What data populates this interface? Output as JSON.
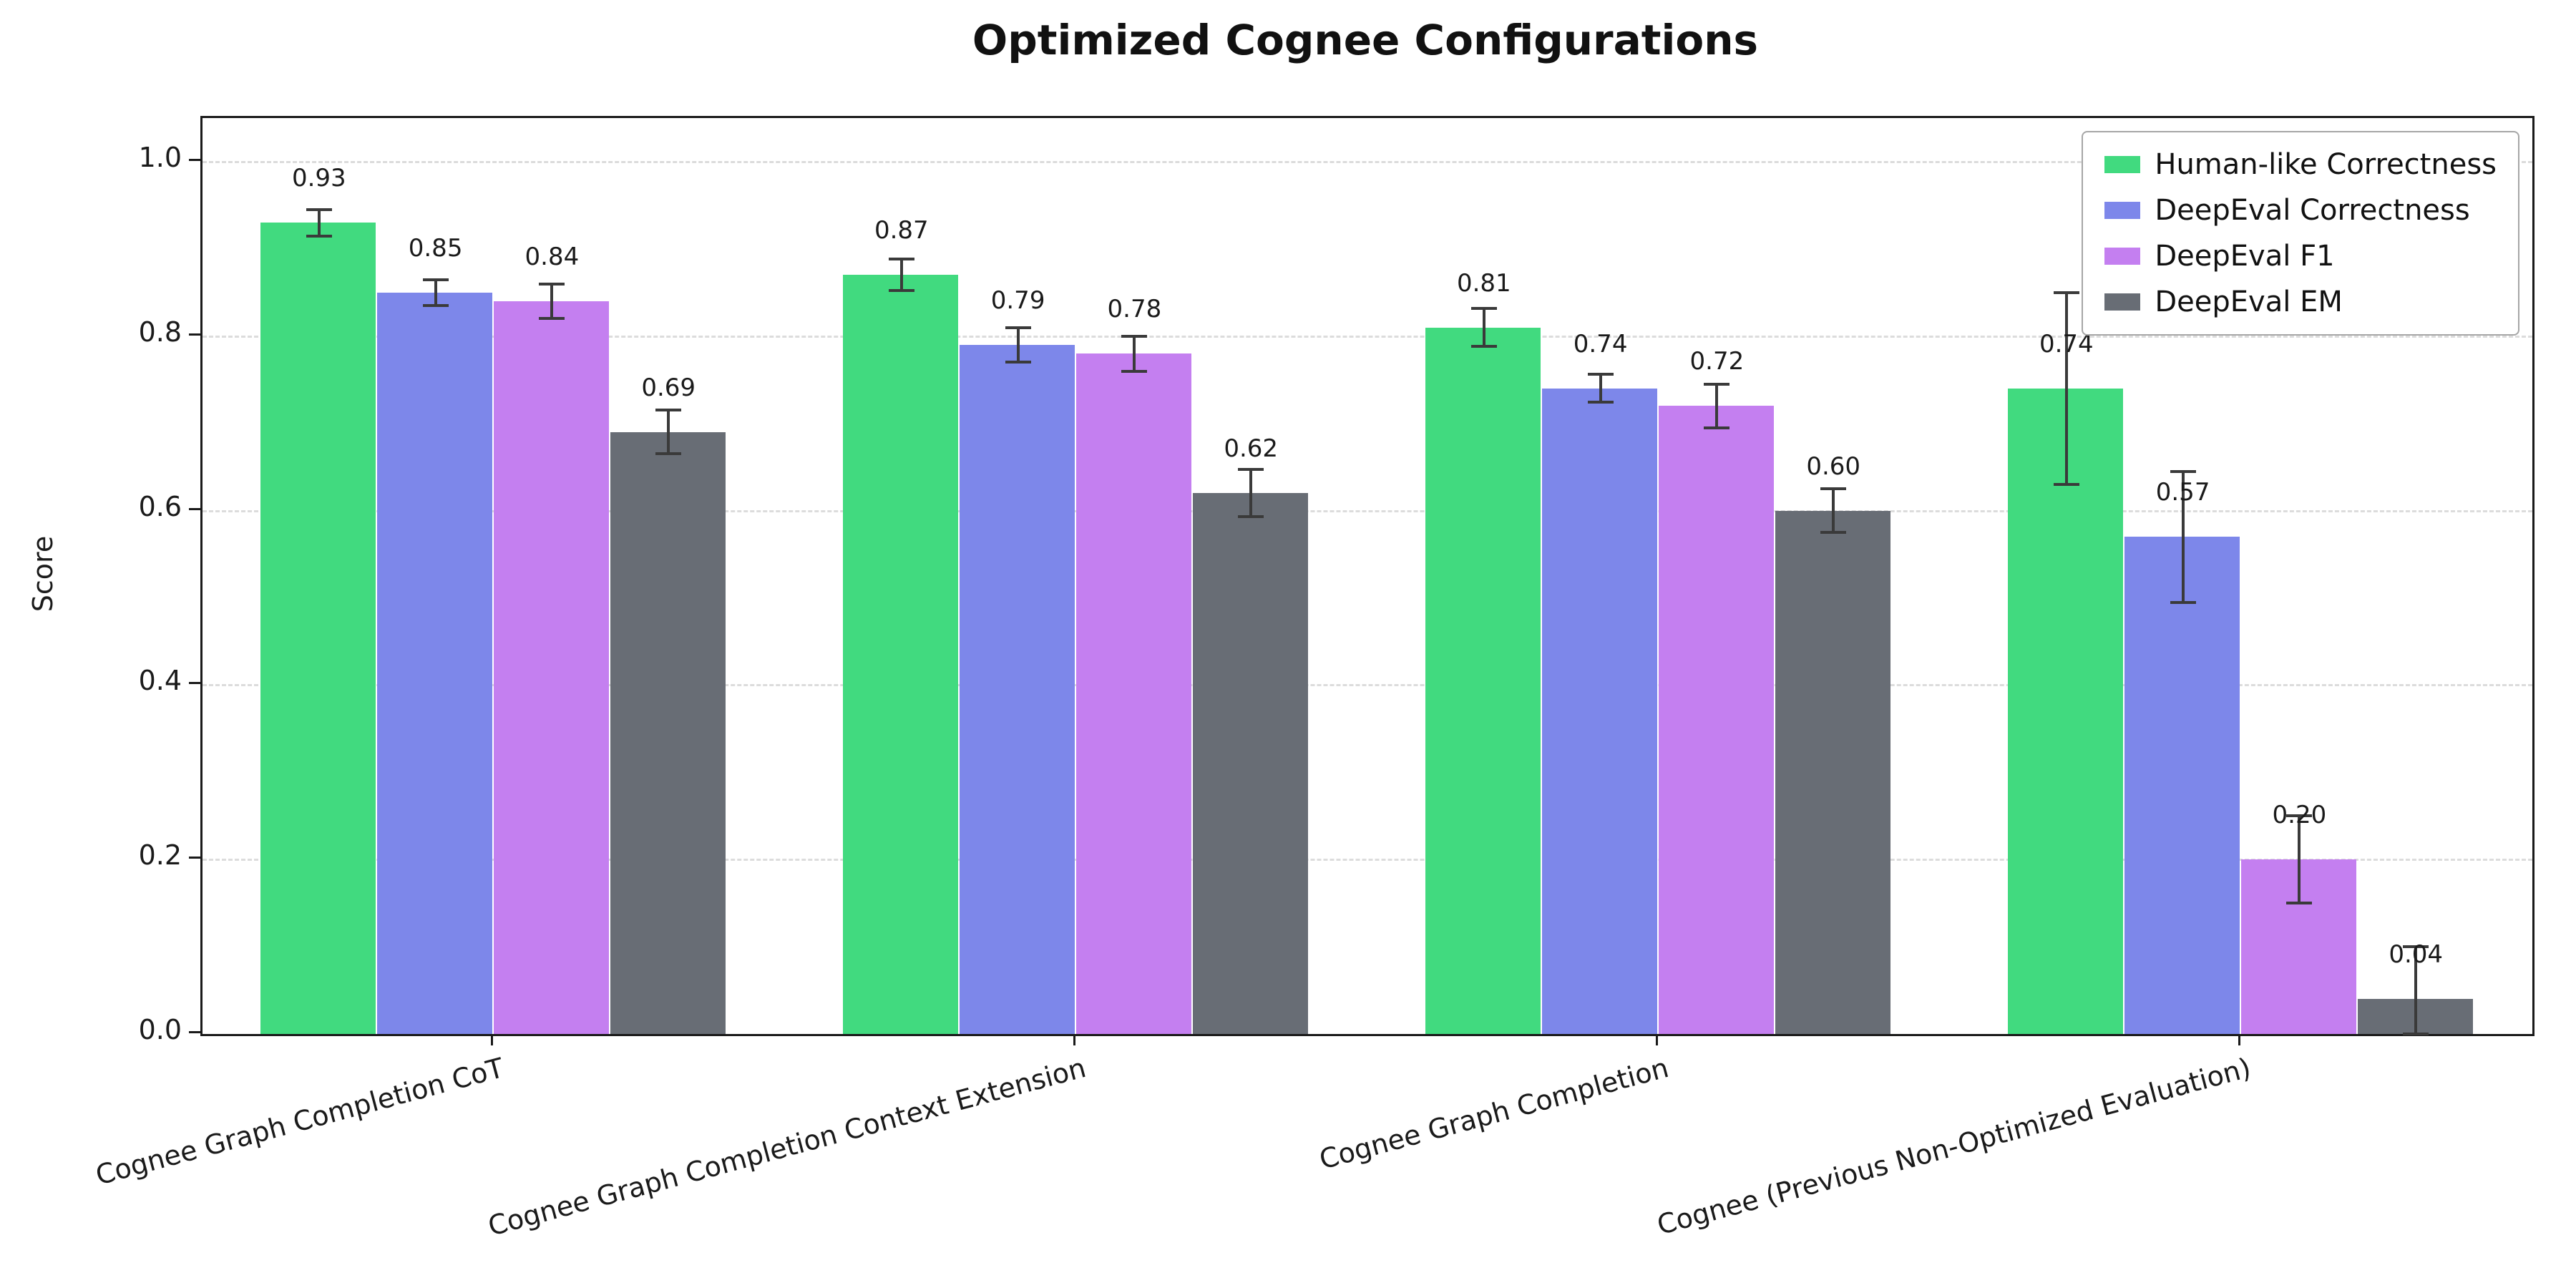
{
  "chart_data": {
    "type": "bar",
    "title": "Optimized Cognee Configurations",
    "xlabel": "",
    "ylabel": "Score",
    "ylim": [
      0,
      1.05
    ],
    "yticks": [
      0.0,
      0.2,
      0.4,
      0.6,
      0.8,
      1.0
    ],
    "grid": "dashed-horizontal",
    "legend_position": "upper right",
    "categories": [
      "Cognee Graph Completion CoT",
      "Cognee Graph Completion Context Extension",
      "Cognee Graph Completion",
      "Cognee (Previous Non-Optimized Evaluation)"
    ],
    "series": [
      {
        "name": "Human-like Correctness",
        "color": "#41da7f",
        "values": [
          0.93,
          0.87,
          0.81,
          0.74
        ],
        "errors": [
          0.015,
          0.018,
          0.022,
          0.11
        ]
      },
      {
        "name": "DeepEval Correctness",
        "color": "#7d87ea",
        "values": [
          0.85,
          0.79,
          0.74,
          0.57
        ],
        "errors": [
          0.015,
          0.02,
          0.016,
          0.075
        ]
      },
      {
        "name": "DeepEval F1",
        "color": "#c47ff0",
        "values": [
          0.84,
          0.78,
          0.72,
          0.2
        ],
        "errors": [
          0.02,
          0.02,
          0.025,
          0.05
        ]
      },
      {
        "name": "DeepEval EM",
        "color": "#686d75",
        "values": [
          0.69,
          0.62,
          0.6,
          0.04
        ],
        "errors": [
          0.025,
          0.027,
          0.025,
          0.06
        ]
      }
    ],
    "error_bar_color": "#3a3a3a",
    "axis_color": "#1a1a1a",
    "grid_color": "#dcdcdc",
    "background_color": "#ffffff",
    "value_label_decimals": 2
  }
}
